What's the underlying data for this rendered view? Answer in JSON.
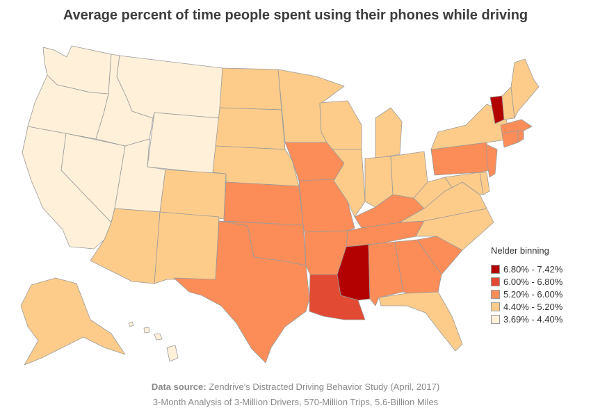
{
  "title": "Average percent of time people spent using their phones while driving",
  "legend": {
    "title": "Nelder binning",
    "bins": [
      {
        "label": "6.80% - 7.42%",
        "color": "#b30000"
      },
      {
        "label": "6.00% - 6.80%",
        "color": "#e34a33"
      },
      {
        "label": "5.20% - 6.00%",
        "color": "#fc8d59"
      },
      {
        "label": "4.40% - 5.20%",
        "color": "#fdcc8a"
      },
      {
        "label": "3.69% - 4.40%",
        "color": "#fef0d9"
      }
    ]
  },
  "footer": {
    "source_label": "Data source:",
    "source_text": " Zendrive's Distracted Driving Behavior Study (April, 2017)",
    "line2": "3-Month Analysis of 3-Million Drivers, 570-Million Trips, 5.6-Billion Miles"
  },
  "states": {
    "WA": "#fef0d9",
    "OR": "#fef0d9",
    "CA": "#fef0d9",
    "NV": "#fef0d9",
    "ID": "#fef0d9",
    "MT": "#fef0d9",
    "WY": "#fef0d9",
    "UT": "#fef0d9",
    "HI": "#fef0d9",
    "AK": "#fdcc8a",
    "AZ": "#fdcc8a",
    "NM": "#fdcc8a",
    "CO": "#fdcc8a",
    "ND": "#fdcc8a",
    "SD": "#fdcc8a",
    "NE": "#fdcc8a",
    "MN": "#fdcc8a",
    "WI": "#fdcc8a",
    "MI": "#fdcc8a",
    "IL": "#fdcc8a",
    "IN": "#fdcc8a",
    "OH": "#fdcc8a",
    "WV": "#fdcc8a",
    "VA": "#fdcc8a",
    "NC": "#fdcc8a",
    "FL": "#fdcc8a",
    "ME": "#fdcc8a",
    "NH": "#fdcc8a",
    "NY": "#fdcc8a",
    "MD": "#fdcc8a",
    "DE": "#fdcc8a",
    "TX": "#fc8d59",
    "OK": "#fc8d59",
    "KS": "#fc8d59",
    "MO": "#fc8d59",
    "IA": "#fc8d59",
    "AR": "#fc8d59",
    "TN": "#fc8d59",
    "KY": "#fc8d59",
    "AL": "#fc8d59",
    "GA": "#fc8d59",
    "SC": "#fc8d59",
    "PA": "#fc8d59",
    "NJ": "#fc8d59",
    "CT": "#fc8d59",
    "MA": "#fc8d59",
    "RI": "#fc8d59",
    "LA": "#e34a33",
    "MS": "#b30000",
    "VT": "#b30000"
  }
}
